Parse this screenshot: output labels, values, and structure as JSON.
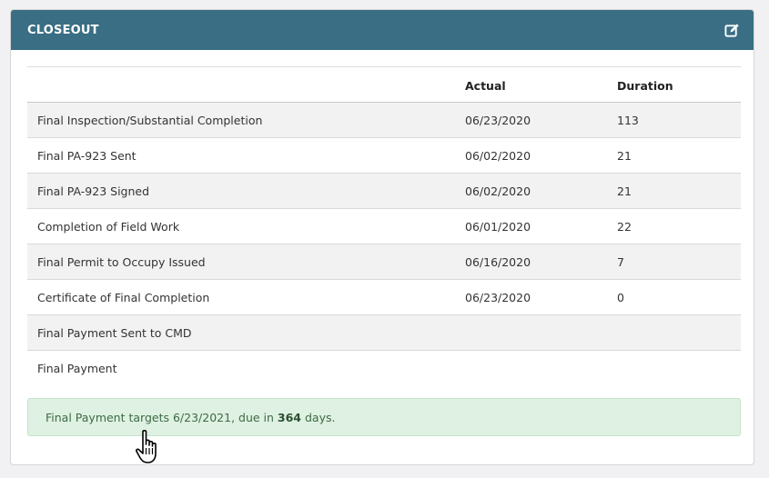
{
  "panel": {
    "title": "CLOSEOUT",
    "edit_icon": "edit-icon"
  },
  "table": {
    "headers": [
      "",
      "Actual",
      "Duration"
    ],
    "rows": [
      {
        "milestone": "Final Inspection/Substantial Completion",
        "actual": "06/23/2020",
        "duration": "113"
      },
      {
        "milestone": "Final PA-923 Sent",
        "actual": "06/02/2020",
        "duration": "21"
      },
      {
        "milestone": "Final PA-923 Signed",
        "actual": "06/02/2020",
        "duration": "21"
      },
      {
        "milestone": "Completion of Field Work",
        "actual": "06/01/2020",
        "duration": "22"
      },
      {
        "milestone": "Final Permit to Occupy Issued",
        "actual": "06/16/2020",
        "duration": "7"
      },
      {
        "milestone": "Certificate of Final Completion",
        "actual": "06/23/2020",
        "duration": "0"
      },
      {
        "milestone": "Final Payment Sent to CMD",
        "actual": "",
        "duration": ""
      },
      {
        "milestone": "Final Payment",
        "actual": "",
        "duration": ""
      }
    ]
  },
  "alert": {
    "prefix": "Final Payment targets 6/23/2021, due in ",
    "days": "364",
    "suffix": " days."
  },
  "colors": {
    "header": "#396e85",
    "alert_bg": "#dff1e2",
    "alert_text": "#3c6b45"
  }
}
